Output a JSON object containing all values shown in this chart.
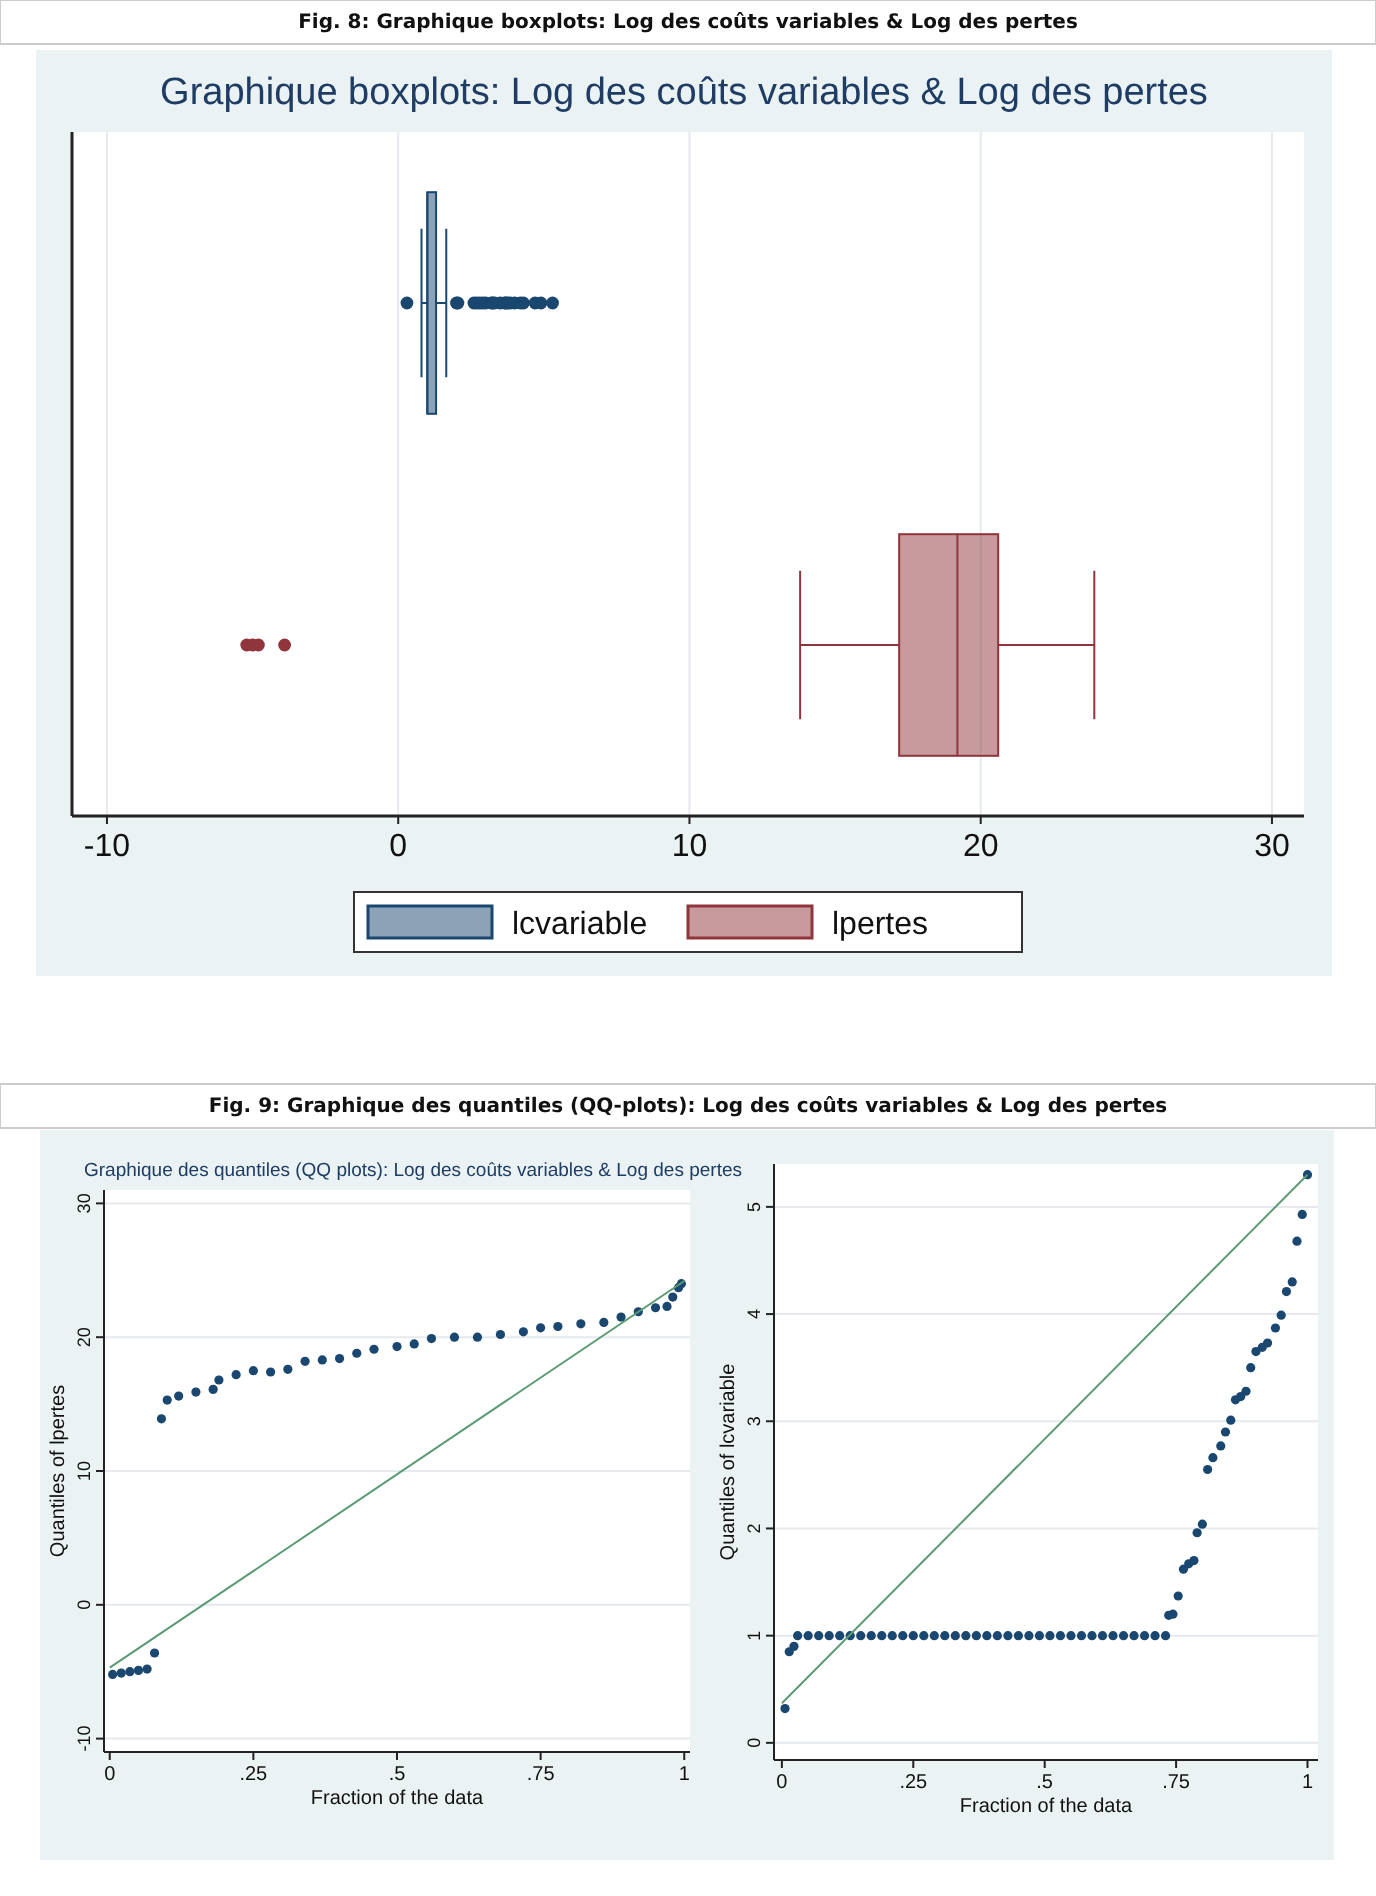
{
  "chart_data": [
    {
      "type": "box",
      "orientation": "horizontal",
      "title": "Graphique boxplots: Log des coûts variables & Log des pertes",
      "annotations": [
        "Fig. 8: Graphique boxplots: Log des coûts variables & Log des pertes"
      ],
      "categories": [
        null,
        null
      ],
      "xlim": [
        -11.2,
        31.1
      ],
      "xticks": [
        -10,
        0,
        10,
        20,
        30
      ],
      "grid": "x",
      "legend": "bottom",
      "series": [
        {
          "name": "lcvariable",
          "color": "#1a476f",
          "boxes": [
            {
              "low": 0.8,
              "q1": 1.0,
              "median": 1.0,
              "q3": 1.3,
              "high": 1.65,
              "outliers": [
                0.3,
                2.0,
                2.05,
                2.6,
                2.7,
                2.8,
                2.9,
                3.0,
                3.2,
                3.25,
                3.3,
                3.5,
                3.65,
                3.7,
                3.75,
                3.85,
                4.0,
                4.2,
                4.3,
                4.7,
                4.9,
                5.3
              ]
            },
            null
          ]
        },
        {
          "name": "lpertes",
          "color": "#90353b",
          "boxes": [
            null,
            {
              "low": 13.8,
              "q1": 17.2,
              "median": 19.2,
              "q3": 20.6,
              "high": 23.9,
              "outliers": [
                -5.2,
                -5.0,
                -4.8,
                -3.9
              ]
            }
          ]
        }
      ]
    },
    {
      "type": "scatter",
      "title": "Graphique des quantiles (QQ plots): Log des coûts variables & Log des pertes",
      "annotations": [
        "Fig. 9: Graphique des quantiles (QQ-plots): Log des coûts variables & Log des pertes"
      ],
      "xlabel": "Fraction of the data",
      "ylabel": "Quantiles of lpertes",
      "xlim": [
        -0.01,
        1.01
      ],
      "xticks": [
        0,
        {
          "value": 0.25,
          "label": ".25"
        },
        {
          "value": 0.5,
          "label": ".5"
        },
        {
          "value": 0.75,
          "label": ".75"
        },
        1
      ],
      "ylim": [
        -11,
        31
      ],
      "yticks": [
        -10,
        0,
        10,
        20,
        30
      ],
      "grid": "y",
      "series": [
        {
          "color": "#1a476f",
          "marker": "circle",
          "x": [
            0.005,
            0.02,
            0.035,
            0.05,
            0.065,
            0.078,
            0.09,
            0.1,
            0.12,
            0.15,
            0.18,
            0.19,
            0.22,
            0.25,
            0.28,
            0.31,
            0.34,
            0.37,
            0.4,
            0.43,
            0.46,
            0.5,
            0.53,
            0.56,
            0.6,
            0.64,
            0.68,
            0.72,
            0.75,
            0.78,
            0.82,
            0.86,
            0.89,
            0.92,
            0.95,
            0.97,
            0.98,
            0.99,
            0.995
          ],
          "values": [
            -5.2,
            -5.1,
            -5.0,
            -4.9,
            -4.8,
            -3.6,
            13.9,
            15.3,
            15.6,
            15.9,
            16.1,
            16.8,
            17.2,
            17.5,
            17.4,
            17.6,
            18.2,
            18.3,
            18.4,
            18.8,
            19.1,
            19.3,
            19.5,
            19.9,
            20.0,
            20.0,
            20.2,
            20.4,
            20.7,
            20.8,
            21.0,
            21.1,
            21.5,
            21.9,
            22.2,
            22.3,
            23.0,
            23.7,
            24.0
          ]
        },
        {
          "type": "line",
          "marker": "none",
          "color": "#5a9a74",
          "x": [
            0,
            1
          ],
          "values": [
            -4.7,
            24.2
          ]
        }
      ]
    },
    {
      "type": "scatter",
      "xlabel": "Fraction of the data",
      "ylabel": "Quantiles of lcvariable",
      "xlim": [
        -0.015,
        1.02
      ],
      "xticks": [
        0,
        {
          "value": 0.25,
          "label": ".25"
        },
        {
          "value": 0.5,
          "label": ".5"
        },
        {
          "value": 0.75,
          "label": ".75"
        },
        1
      ],
      "ylim": [
        -0.16,
        5.4
      ],
      "yticks": [
        0,
        1,
        2,
        3,
        4,
        5
      ],
      "grid": "y",
      "series": [
        {
          "color": "#1a476f",
          "marker": "circle",
          "x": [
            0.006,
            0.014,
            0.023,
            0.03,
            0.05,
            0.07,
            0.09,
            0.11,
            0.13,
            0.15,
            0.17,
            0.19,
            0.21,
            0.23,
            0.25,
            0.27,
            0.29,
            0.31,
            0.33,
            0.35,
            0.37,
            0.39,
            0.41,
            0.43,
            0.45,
            0.47,
            0.49,
            0.51,
            0.53,
            0.55,
            0.57,
            0.59,
            0.61,
            0.63,
            0.65,
            0.67,
            0.69,
            0.71,
            0.73,
            0.736,
            0.744,
            0.754,
            0.764,
            0.774,
            0.784,
            0.79,
            0.8,
            0.81,
            0.82,
            0.835,
            0.844,
            0.854,
            0.863,
            0.873,
            0.883,
            0.892,
            0.902,
            0.914,
            0.924,
            0.939,
            0.95,
            0.96,
            0.971,
            0.98,
            0.99,
            1.0
          ],
          "values": [
            0.32,
            0.85,
            0.9,
            1,
            1,
            1,
            1,
            1,
            1,
            1,
            1,
            1,
            1,
            1,
            1,
            1,
            1,
            1,
            1,
            1,
            1,
            1,
            1,
            1,
            1,
            1,
            1,
            1,
            1,
            1,
            1,
            1,
            1,
            1,
            1,
            1,
            1,
            1,
            1,
            1.19,
            1.2,
            1.37,
            1.62,
            1.67,
            1.7,
            1.96,
            2.04,
            2.55,
            2.66,
            2.77,
            2.9,
            3.01,
            3.2,
            3.23,
            3.28,
            3.5,
            3.65,
            3.69,
            3.73,
            3.87,
            3.99,
            4.21,
            4.3,
            4.68,
            4.93,
            5.3
          ]
        },
        {
          "type": "line",
          "marker": "none",
          "color": "#5a9a74",
          "x": [
            0,
            1
          ],
          "values": [
            0.37,
            5.3
          ]
        }
      ]
    }
  ]
}
